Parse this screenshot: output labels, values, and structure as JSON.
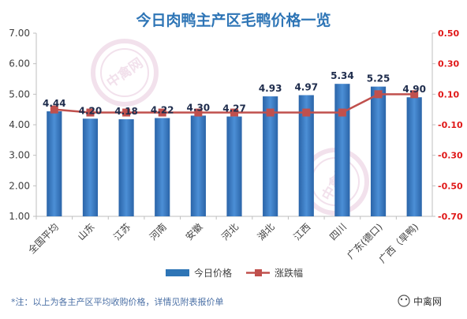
{
  "chart_data": {
    "type": "bar",
    "title": "今日肉鸭主产区毛鸭价格一览",
    "categories": [
      "全国平均",
      "山东",
      "江苏",
      "河南",
      "安徽",
      "河北",
      "湖北",
      "江西",
      "四川",
      "广东(德口)",
      "广西（旱鸭)"
    ],
    "series": [
      {
        "name": "今日价格",
        "type": "bar",
        "axis": "left",
        "color": "#2e75b6",
        "values": [
          4.44,
          4.2,
          4.18,
          4.22,
          4.3,
          4.27,
          4.93,
          4.97,
          5.34,
          5.25,
          4.9
        ]
      },
      {
        "name": "涨跌幅",
        "type": "line",
        "axis": "right",
        "color": "#c0504d",
        "values": [
          0.0,
          -0.02,
          -0.02,
          -0.02,
          -0.02,
          -0.02,
          -0.02,
          -0.02,
          -0.02,
          0.1,
          0.1
        ]
      }
    ],
    "y_left": {
      "min": 1.0,
      "max": 7.0,
      "ticks": [
        "1.00",
        "2.00",
        "3.00",
        "4.00",
        "5.00",
        "6.00",
        "7.00"
      ]
    },
    "y_right": {
      "min": -0.7,
      "max": 0.5,
      "ticks": [
        "-0.70",
        "-0.50",
        "-0.30",
        "-0.10",
        "0.10",
        "0.30",
        "0.50"
      ]
    },
    "bar_labels": [
      "4.44",
      "4.20",
      "4.18",
      "4.22",
      "4.30",
      "4.27",
      "4.93",
      "4.97",
      "5.34",
      "5.25",
      "4.90"
    ],
    "legend_position": "bottom",
    "grid": false
  },
  "footnote": "*注：以上为各主产区平均收购价格，详情见附表报价单",
  "brand": "中禽网",
  "watermark_text": "中禽网"
}
